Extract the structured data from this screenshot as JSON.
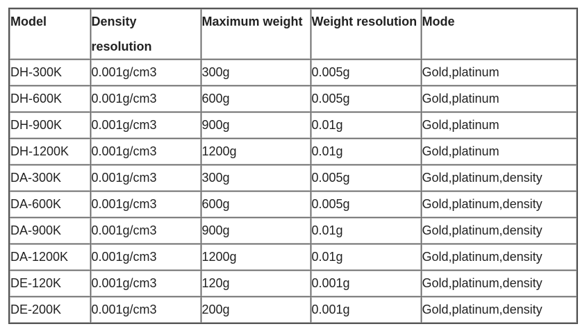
{
  "table": {
    "header": [
      "Model",
      "Density resolution",
      "Maximum weight",
      "Weight resolution",
      "Mode"
    ],
    "rows": [
      [
        "DH-300K",
        "0.001g/cm3",
        "300g",
        "0.005g",
        "Gold,platinum"
      ],
      [
        "DH-600K",
        "0.001g/cm3",
        "600g",
        "0.005g",
        "Gold,platinum"
      ],
      [
        "DH-900K",
        "0.001g/cm3",
        "900g",
        "0.01g",
        "Gold,platinum"
      ],
      [
        "DH-1200K",
        "0.001g/cm3",
        "1200g",
        "0.01g",
        "Gold,platinum"
      ],
      [
        "DA-300K",
        "0.001g/cm3",
        "300g",
        "0.005g",
        "Gold,platinum,density"
      ],
      [
        "DA-600K",
        "0.001g/cm3",
        "600g",
        "0.005g",
        "Gold,platinum,density"
      ],
      [
        "DA-900K",
        "0.001g/cm3",
        "900g",
        "0.01g",
        "Gold,platinum,density"
      ],
      [
        "DA-1200K",
        "0.001g/cm3",
        "1200g",
        "0.01g",
        "Gold,platinum,density"
      ],
      [
        "DE-120K",
        "0.001g/cm3",
        "120g",
        "0.001g",
        "Gold,platinum,density"
      ],
      [
        "DE-200K",
        "0.001g/cm3",
        "200g",
        "0.001g",
        "Gold,platinum,density"
      ]
    ]
  }
}
